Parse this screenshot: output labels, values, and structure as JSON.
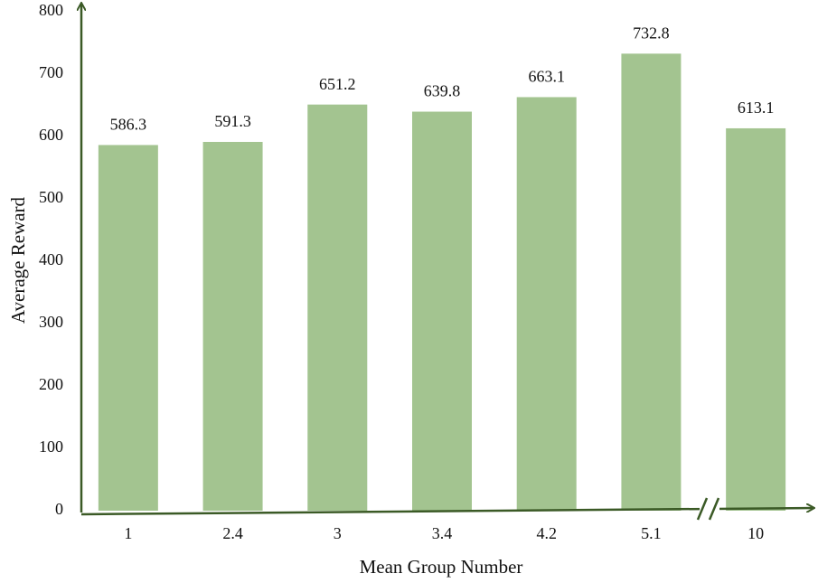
{
  "chart_data": {
    "type": "bar",
    "x_label": "Mean Group Number",
    "y_label": "Average Reward",
    "categories": [
      "1",
      "2.4",
      "3",
      "3.4",
      "4.2",
      "5.1",
      "10"
    ],
    "values": [
      586.3,
      591.3,
      651.2,
      639.8,
      663.1,
      732.8,
      613.1
    ],
    "color": "#a3c490",
    "ylim": [
      0,
      800
    ],
    "yticks": [
      0,
      100,
      200,
      300,
      400,
      500,
      600,
      700,
      800
    ],
    "grid": false
  }
}
